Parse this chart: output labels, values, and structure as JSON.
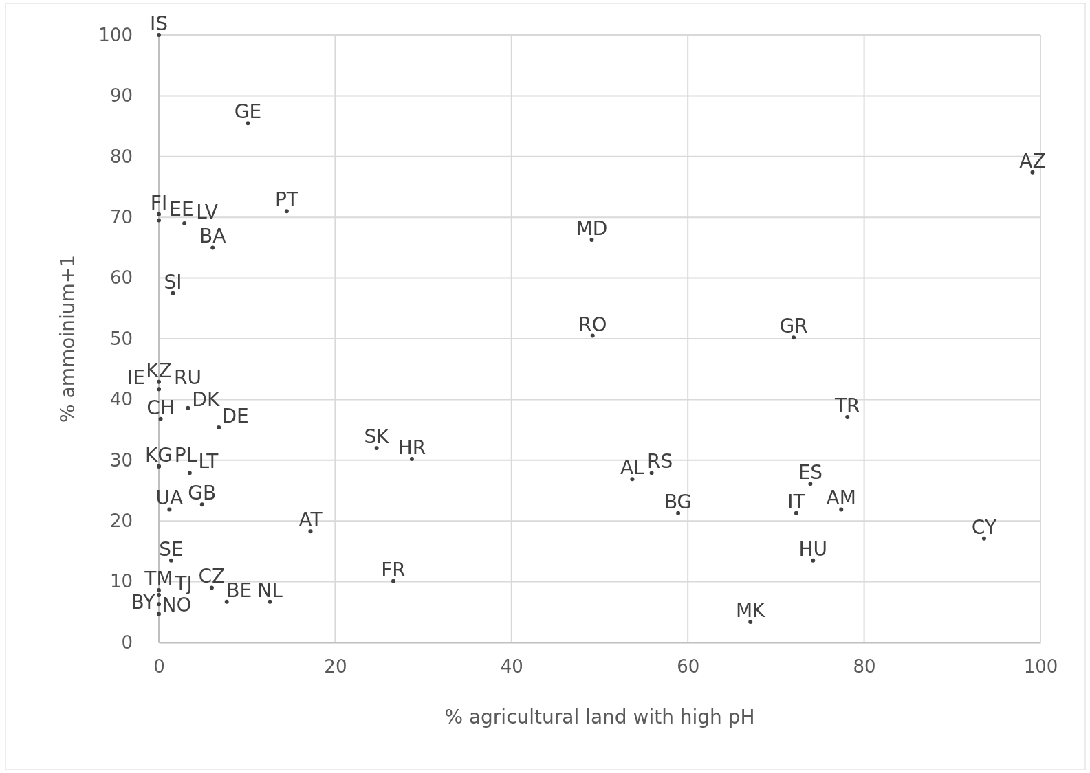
{
  "chart_data": {
    "type": "scatter",
    "xlabel": "% agricultural land with high pH",
    "ylabel": "% ammoinium+1",
    "xlim": [
      0,
      100
    ],
    "ylim": [
      0,
      100
    ],
    "xticks": [
      0,
      20,
      40,
      60,
      80,
      100
    ],
    "yticks": [
      0,
      10,
      20,
      30,
      40,
      50,
      60,
      70,
      80,
      90,
      100
    ],
    "grid": true,
    "marker": "circle",
    "series": [
      {
        "color": "#404040",
        "x": [
          0,
          10.1,
          14.5,
          0,
          0,
          2.9,
          6.1,
          1.6,
          49.1,
          49.2,
          72,
          99.1,
          78.1,
          0,
          0,
          0,
          3.3,
          0.2,
          6.8,
          24.7,
          28.7,
          0,
          0,
          3.5,
          53.7,
          55.9,
          73.9,
          1.2,
          4.9,
          58.9,
          72.3,
          77.4,
          17.2,
          93.6,
          1.4,
          74.2,
          26.6,
          6,
          0,
          0,
          7.7,
          12.6,
          0,
          0,
          67.1
        ],
        "values": [
          100,
          85.5,
          71,
          70.5,
          69.5,
          69,
          65,
          57.5,
          66.3,
          50.5,
          50.2,
          77.4,
          37.1,
          42.9,
          41.7,
          41.7,
          38.6,
          36.8,
          35.4,
          32,
          30.2,
          29,
          29,
          27.9,
          26.9,
          27.9,
          26.1,
          21.9,
          22.7,
          21.3,
          21.3,
          21.9,
          18.3,
          17.1,
          13.5,
          13.5,
          10.1,
          9,
          8.6,
          7.8,
          6.7,
          6.7,
          6.3,
          4.7,
          3.4
        ],
        "value_labels": [
          "IS",
          "GE",
          "PT",
          "FI",
          "EE",
          "LV",
          "BA",
          "SI",
          "MD",
          "RO",
          "GR",
          "AZ",
          "TR",
          "KZ",
          "RU",
          "IE",
          "DK",
          "CH",
          "DE",
          "SK",
          "HR",
          "KG",
          "PL",
          "LT",
          "AL",
          "RS",
          "ES",
          "UA",
          "GB",
          "BG",
          "IT",
          "AM",
          "AT",
          "CY",
          "SE",
          "HU",
          "FR",
          "CZ",
          "TM",
          "TJ",
          "BE",
          "NL",
          "BY",
          "NO",
          "MK"
        ]
      }
    ]
  }
}
